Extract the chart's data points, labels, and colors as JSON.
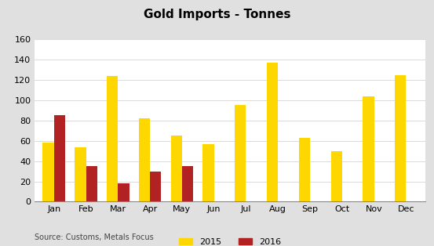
{
  "title": "Gold Imports - Tonnes",
  "months": [
    "Jan",
    "Feb",
    "Mar",
    "Apr",
    "May",
    "Jun",
    "Jul",
    "Aug",
    "Sep",
    "Oct",
    "Nov",
    "Dec"
  ],
  "values_2015": [
    58,
    54,
    124,
    82,
    65,
    57,
    95,
    137,
    63,
    50,
    104,
    125
  ],
  "values_2016": [
    85,
    35,
    18,
    30,
    35,
    null,
    null,
    null,
    null,
    null,
    null,
    null
  ],
  "color_2015": "#FFD700",
  "color_2016": "#B22222",
  "ylim": [
    0,
    160
  ],
  "yticks": [
    0,
    20,
    40,
    60,
    80,
    100,
    120,
    140,
    160
  ],
  "source_text": "Source: Customs, Metals Focus",
  "legend_2015": "2015",
  "legend_2016": "2016",
  "title_bg_color": "#C0C0C0",
  "plot_bg_color": "#FFFFFF",
  "bar_width": 0.35
}
